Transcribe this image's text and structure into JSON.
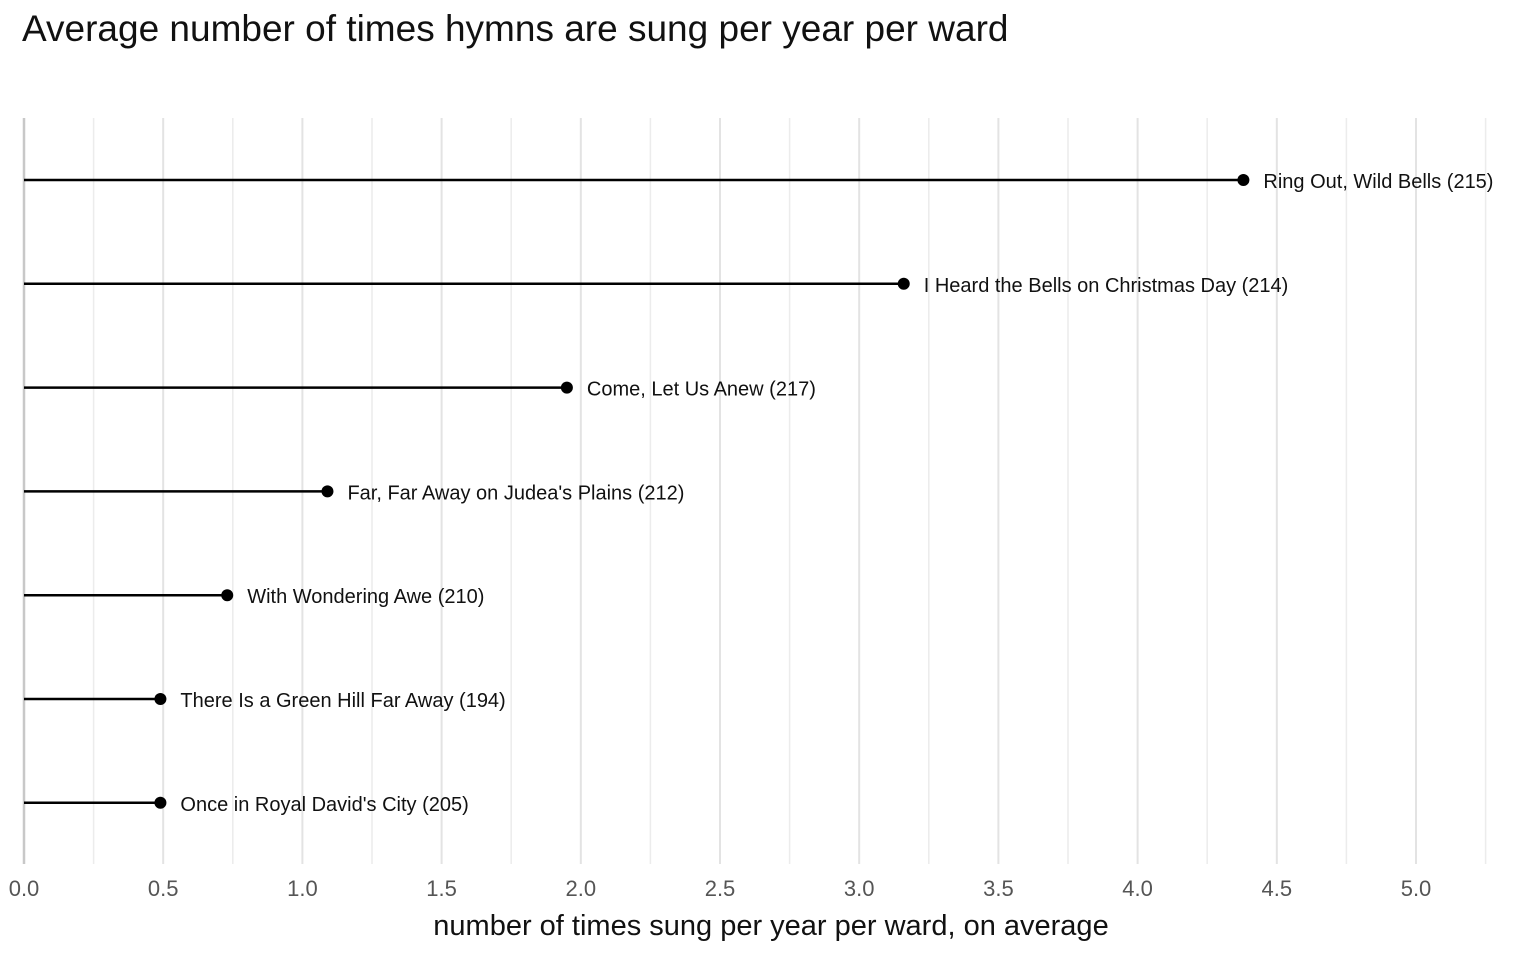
{
  "chart_data": {
    "type": "lollipop",
    "title": "Average number of times hymns are sung per year per ward",
    "xlabel": "number of times sung per year per ward, on average",
    "ylabel": "",
    "xlim": [
      0,
      5.25
    ],
    "x_ticks": [
      "0.0",
      "0.5",
      "1.0",
      "1.5",
      "2.0",
      "2.5",
      "3.0",
      "3.5",
      "4.0",
      "4.5",
      "5.0"
    ],
    "grid": true,
    "categories": [
      "Ring Out, Wild Bells (215)",
      "I Heard the Bells on Christmas Day (214)",
      "Come, Let Us Anew (217)",
      "Far, Far Away on Judea's Plains (212)",
      "With Wondering Awe (210)",
      "There Is a Green Hill Far Away (194)",
      "Once in Royal David's City (205)"
    ],
    "values": [
      4.38,
      3.16,
      1.95,
      1.09,
      0.73,
      0.49,
      0.49
    ]
  }
}
